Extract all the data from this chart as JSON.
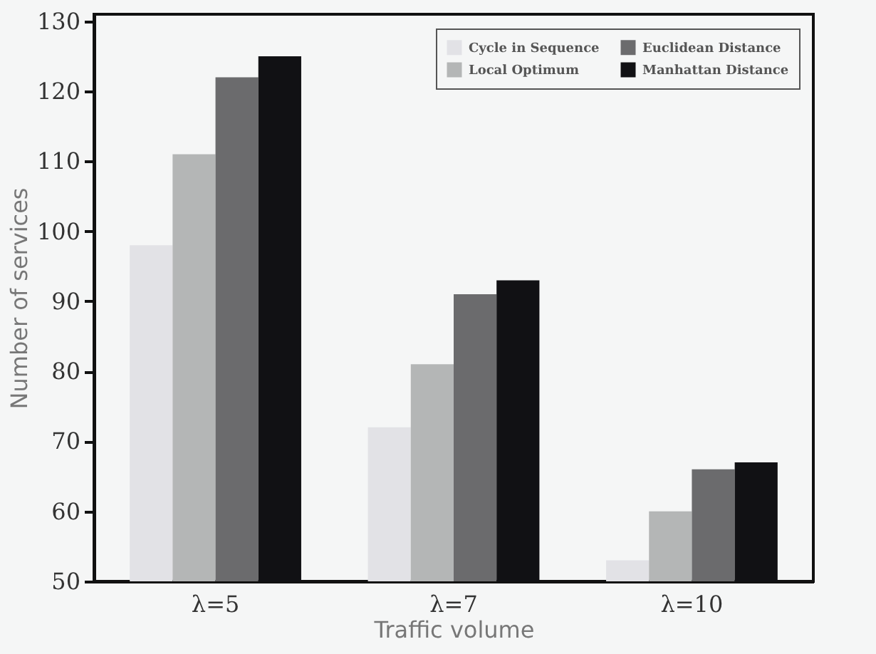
{
  "chart_data": {
    "type": "bar",
    "xlabel": "Traffic volume",
    "ylabel": "Number of services",
    "categories": [
      "λ=5",
      "λ=7",
      "λ=10"
    ],
    "series": [
      {
        "name": "Cycle in Sequence",
        "color": "#e2e2e6",
        "values": [
          98,
          72,
          53
        ]
      },
      {
        "name": "Local Optimum",
        "color": "#b4b6b6",
        "values": [
          111,
          81,
          60
        ]
      },
      {
        "name": "Euclidean Distance",
        "color": "#6b6b6d",
        "values": [
          122,
          91,
          66
        ]
      },
      {
        "name": "Manhattan Distance",
        "color": "#111114",
        "values": [
          125,
          93,
          67
        ]
      }
    ],
    "ylim": [
      50,
      131
    ],
    "yticks": [
      50,
      60,
      70,
      80,
      90,
      100,
      110,
      120,
      130
    ],
    "grid": false,
    "legend": "top right"
  }
}
